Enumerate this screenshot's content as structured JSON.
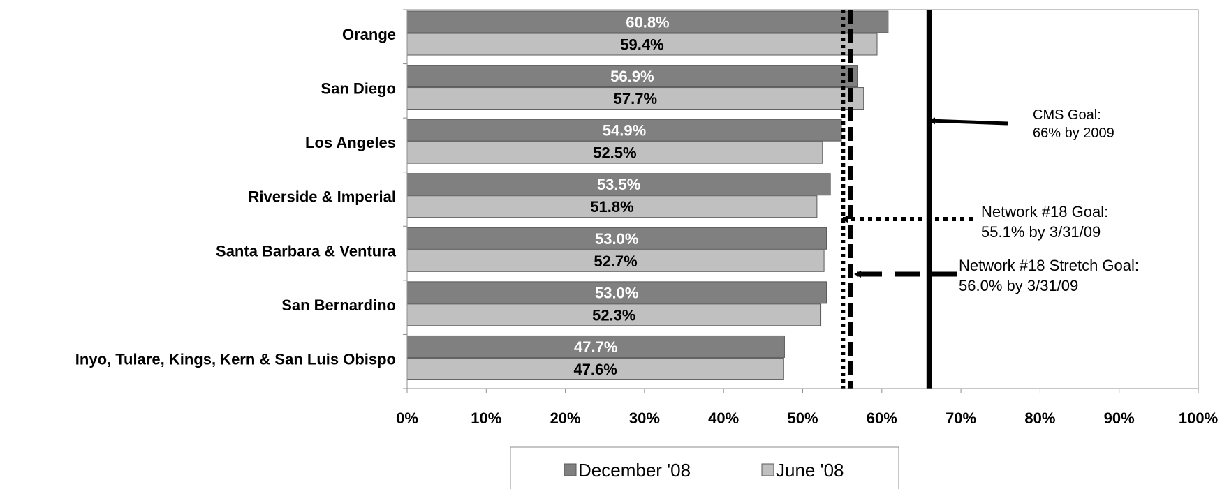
{
  "chart_data": {
    "type": "bar",
    "orientation": "horizontal",
    "categories": [
      "Orange",
      "San Diego",
      "Los Angeles",
      "Riverside & Imperial",
      "Santa Barbara & Ventura",
      "San Bernardino",
      "Inyo, Tulare, Kings, Kern & San Luis Obispo"
    ],
    "series": [
      {
        "name": "December '08",
        "values": [
          60.8,
          56.9,
          54.9,
          53.5,
          53.0,
          53.0,
          47.7
        ],
        "labels": [
          "60.8%",
          "56.9%",
          "54.9%",
          "53.5%",
          "53.0%",
          "53.0%",
          "47.7%"
        ],
        "color": "#808080",
        "label_color": "#ffffff"
      },
      {
        "name": "June '08",
        "values": [
          59.4,
          57.7,
          52.5,
          51.8,
          52.7,
          52.3,
          47.6
        ],
        "labels": [
          "59.4%",
          "57.7%",
          "52.5%",
          "51.8%",
          "52.7%",
          "52.3%",
          "47.6%"
        ],
        "color": "#c0c0c0",
        "label_color": "#000000"
      }
    ],
    "xlim": [
      0,
      100
    ],
    "xticks": [
      "0%",
      "10%",
      "20%",
      "30%",
      "40%",
      "50%",
      "60%",
      "70%",
      "80%",
      "90%",
      "100%"
    ],
    "grid": false,
    "legend_position": "bottom",
    "reference_lines": [
      {
        "value": 55.1,
        "style": "dotted",
        "label": [
          "Network #18 Goal:",
          "55.1% by 3/31/09"
        ]
      },
      {
        "value": 56.0,
        "style": "dashed",
        "label": [
          "Network #18 Stretch Goal:",
          "56.0% by 3/31/09"
        ]
      },
      {
        "value": 66,
        "style": "solid",
        "label": [
          "CMS Goal:",
          "66% by 2009"
        ]
      }
    ]
  }
}
